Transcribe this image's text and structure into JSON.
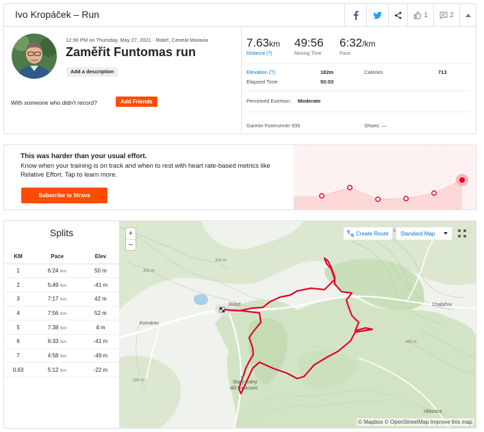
{
  "header": {
    "title": "Ivo Kropáček – Run",
    "kudos_count": "1",
    "comments_count": "2"
  },
  "activity": {
    "meta": "12:36 PM on Thursday, May 27, 2021 · Rideč, Central Moravia",
    "name": "Zaměřit Funtomas run",
    "add_description": "Add a description",
    "with_someone": "With someone who didn't record?",
    "add_friends": "Add Friends"
  },
  "stats": {
    "distance_value": "7.63",
    "distance_unit": "km",
    "distance_label": "Distance (?)",
    "moving_time_value": "49:56",
    "moving_time_label": "Moving Time",
    "pace_value": "6:32",
    "pace_unit": "/km",
    "pace_label": "Pace",
    "elevation_label": "Elevation (?)",
    "elevation_value": "182m",
    "calories_label": "Calories",
    "calories_value": "713",
    "elapsed_label": "Elapsed Time",
    "elapsed_value": "50:03",
    "exertion_label": "Perceived Exertion:",
    "exertion_value": "Moderate",
    "device": "Garmin Forerunner 935",
    "shoes": "Shoes: —"
  },
  "effort": {
    "headline": "This was harder than your usual effort.",
    "body": "Know when your training is on track and when to rest with heart rate-based metrics like Relative Effort. Tap to learn more.",
    "cta": "Subscribe to Strava"
  },
  "splits": {
    "title": "Splits",
    "columns": [
      "KM",
      "Pace",
      "Elev"
    ],
    "rows": [
      {
        "km": "1",
        "pace": "6:24",
        "elev": "50 m"
      },
      {
        "km": "2",
        "pace": "5:49",
        "elev": "-41 m"
      },
      {
        "km": "3",
        "pace": "7:17",
        "elev": "42 m"
      },
      {
        "km": "4",
        "pace": "7:56",
        "elev": "52 m"
      },
      {
        "km": "5",
        "pace": "7:38",
        "elev": "4 m"
      },
      {
        "km": "6",
        "pace": "6:33",
        "elev": "-41 m"
      },
      {
        "km": "7",
        "pace": "4:58",
        "elev": "-49 m"
      },
      {
        "km": "0.63",
        "pace": "5:12",
        "elev": "-22 m"
      }
    ],
    "pace_unit": "/km"
  },
  "map": {
    "zoom_in": "+",
    "zoom_out": "−",
    "create_route": "Create Route",
    "map_style": "Standard Map",
    "attribution": "© Mapbox © OpenStreetMap Improve this map",
    "labels": {
      "ridec": "Rideč",
      "komarov": "Komárov",
      "chabicov": "Chabičov",
      "stary": "Starý rudný",
      "dul": "důl Leskovec",
      "hlasnice": "Hlásnice",
      "e300": "300 m",
      "e350": "350 m",
      "e400": "400 m",
      "e440": "440 m",
      "e260": "260 m"
    }
  },
  "colors": {
    "brand": "#fc4c02",
    "link": "#0075c8",
    "route": "#e4002b"
  }
}
